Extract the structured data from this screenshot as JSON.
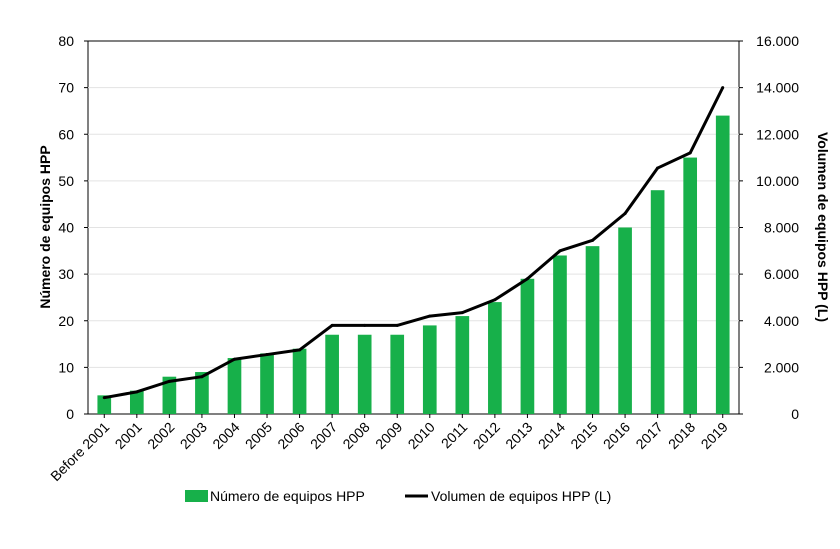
{
  "chart_data": {
    "type": "bar",
    "categories": [
      "Before 2001",
      "2001",
      "2002",
      "2003",
      "2004",
      "2005",
      "2006",
      "2007",
      "2008",
      "2009",
      "2010",
      "2011",
      "2012",
      "2013",
      "2014",
      "2015",
      "2016",
      "2017",
      "2018",
      "2019"
    ],
    "series": [
      {
        "name": "Número de equipos HPP",
        "type": "bar",
        "axis": "left",
        "color": "#17b04a",
        "values": [
          4,
          5,
          8,
          9,
          12,
          13,
          14,
          17,
          17,
          17,
          19,
          21,
          24,
          29,
          34,
          36,
          40,
          48,
          55,
          64
        ]
      },
      {
        "name": "Volumen de equipos HPP (L)",
        "type": "line",
        "axis": "right",
        "color": "#000000",
        "values": [
          700,
          950,
          1400,
          1600,
          2350,
          2550,
          2750,
          3800,
          3800,
          3800,
          4200,
          4350,
          4900,
          5800,
          7000,
          7450,
          8600,
          10550,
          11200,
          14000
        ]
      }
    ],
    "ylabel": "Número de equipos HPP",
    "ylim": [
      0,
      80
    ],
    "yticks": [
      "0",
      "10",
      "20",
      "30",
      "40",
      "50",
      "60",
      "70",
      "80"
    ],
    "y2label": "Volumen de equipos HPP (L)",
    "y2lim": [
      0,
      16000
    ],
    "y2ticks": [
      "0",
      "2.000",
      "4.000",
      "6.000",
      "8.000",
      "10.000",
      "12.000",
      "14.000",
      "16.000"
    ],
    "grid": true,
    "legend_position": "bottom"
  }
}
